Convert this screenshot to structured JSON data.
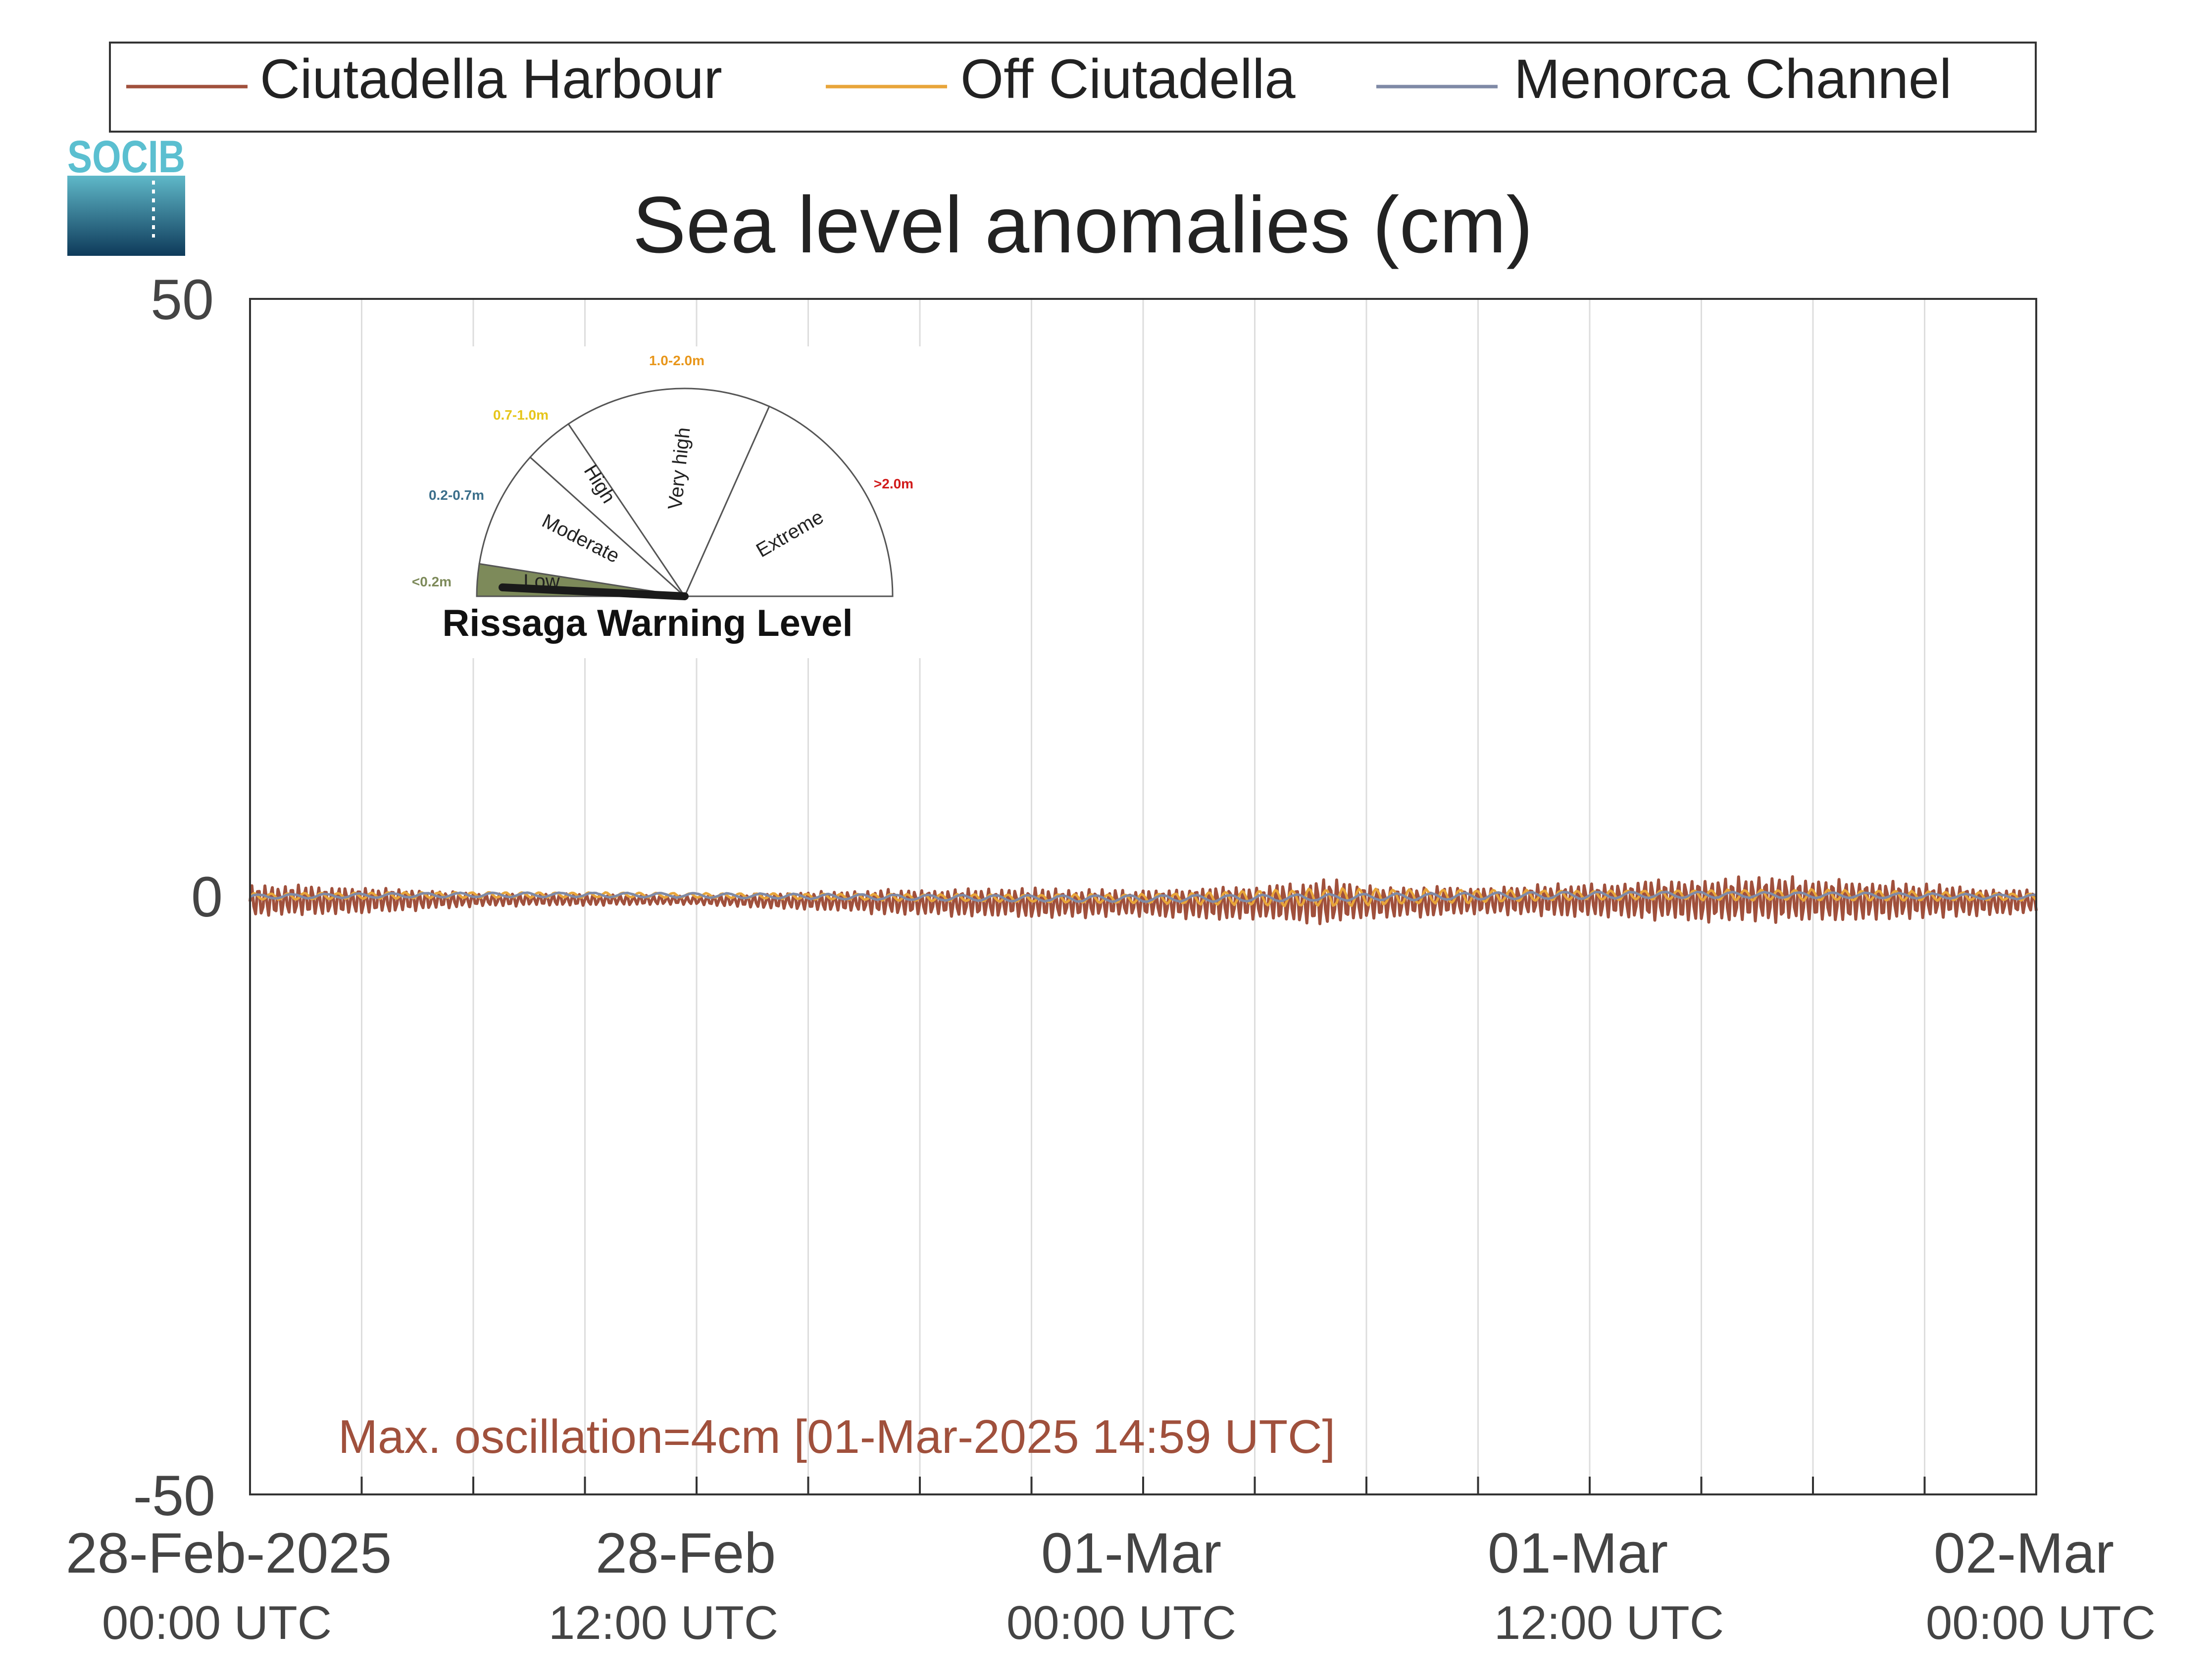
{
  "chart_data": {
    "type": "line",
    "title": "Sea level anomalies (cm)",
    "logo_text": "SOCIB",
    "ylim": [
      -50,
      50
    ],
    "y_ticks": [
      "50",
      "0",
      "-50"
    ],
    "x_range_hours": [
      0,
      48
    ],
    "x_ticks": [
      {
        "hour": 0,
        "date": "28-Feb-2025",
        "time": "00:00 UTC"
      },
      {
        "hour": 12,
        "date": "28-Feb",
        "time": "12:00 UTC"
      },
      {
        "hour": 24,
        "date": "01-Mar",
        "time": "00:00 UTC"
      },
      {
        "hour": 36,
        "date": "01-Mar",
        "time": "12:00 UTC"
      },
      {
        "hour": 48,
        "date": "02-Mar",
        "time": "00:00 UTC"
      }
    ],
    "grid": true,
    "legend_position": "top",
    "series": [
      {
        "name": "Ciutadella Harbour",
        "color": "#a0503c",
        "envelope_hours": [
          0,
          3,
          6,
          9,
          12,
          15,
          18,
          21,
          24,
          27,
          29,
          30,
          33,
          36,
          39,
          42,
          45,
          48
        ],
        "envelope_cm": [
          1.5,
          1.2,
          0.6,
          0.5,
          0.4,
          0.8,
          1.2,
          1.3,
          1.2,
          1.6,
          2.0,
          1.5,
          1.2,
          1.5,
          2.0,
          2.0,
          1.5,
          1.0
        ]
      },
      {
        "name": "Off Ciutadella",
        "color": "#e8a53a",
        "envelope_hours": [
          0,
          12,
          24,
          29,
          36,
          42,
          48
        ],
        "envelope_cm": [
          0.3,
          0.2,
          0.4,
          0.8,
          0.4,
          0.5,
          0.3
        ]
      },
      {
        "name": "Menorca Channel",
        "color": "#7f8aa6",
        "envelope_hours": [
          0,
          12,
          24,
          36,
          48
        ],
        "envelope_cm": [
          0.2,
          0.2,
          0.3,
          0.3,
          0.2
        ]
      }
    ],
    "annotation": {
      "text": "Max. oscillation=4cm [01-Mar-2025 14:59 UTC]",
      "color": "#a0503c"
    },
    "warning_gauge": {
      "title": "Rissaga Warning Level",
      "current_level": "Low",
      "levels": [
        {
          "name": "Low",
          "range": "<0.2m",
          "range_color": "#7d8a5a",
          "fill": "#7d8a5a"
        },
        {
          "name": "Moderate",
          "range": "0.2-0.7m",
          "range_color": "#3a6e8a",
          "fill": "#ffffff"
        },
        {
          "name": "High",
          "range": "0.7-1.0m",
          "range_color": "#e6c51a",
          "fill": "#ffffff"
        },
        {
          "name": "Very high",
          "range": "1.0-2.0m",
          "range_color": "#e8961a",
          "fill": "#ffffff"
        },
        {
          "name": "Extreme",
          "range": ">2.0m",
          "range_color": "#d11a1a",
          "fill": "#ffffff"
        }
      ]
    }
  }
}
